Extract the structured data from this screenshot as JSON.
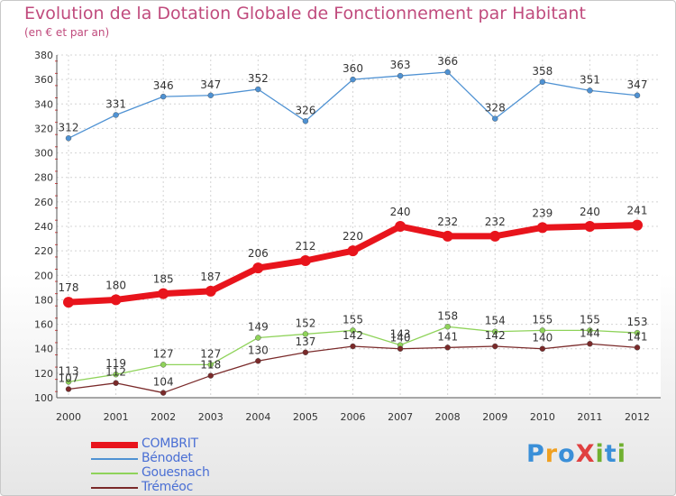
{
  "header": {
    "title": "Evolution de la Dotation Globale de Fonctionnement par Habitant",
    "subtitle": "(en € et par an)"
  },
  "logo": {
    "text": "ProXiti",
    "letters": [
      "P",
      "r",
      "o",
      "X",
      "i",
      "t",
      "i"
    ],
    "colors": [
      "#3a8fd8",
      "#f0a020",
      "#3a8fd8",
      "#e04040",
      "#70b030",
      "#3a8fd8",
      "#70b030"
    ]
  },
  "chart_data": {
    "type": "line",
    "x": [
      "2000",
      "2001",
      "2002",
      "2003",
      "2004",
      "2005",
      "2006",
      "2007",
      "2008",
      "2009",
      "2010",
      "2011",
      "2012"
    ],
    "ylim": [
      100,
      380
    ],
    "yticks": [
      "100",
      "120",
      "140",
      "160",
      "180",
      "200",
      "220",
      "240",
      "260",
      "280",
      "300",
      "320",
      "340",
      "360",
      "380"
    ],
    "grid": true,
    "legend_position": "bottom-left",
    "series": [
      {
        "name": "COMBRIT",
        "color": "#e8141c",
        "emphasis": true,
        "values": [
          178,
          180,
          185,
          187,
          206,
          212,
          220,
          240,
          232,
          232,
          239,
          240,
          241
        ],
        "labels": [
          "178",
          "180",
          "185",
          "187",
          "206",
          "212",
          "220",
          "240",
          "232",
          "232",
          "239",
          "240",
          "241"
        ]
      },
      {
        "name": "Bénodet",
        "color": "#4f92d3",
        "values": [
          312,
          331,
          346,
          347,
          352,
          326,
          360,
          363,
          366,
          328,
          358,
          351,
          347
        ],
        "labels": [
          "312",
          "331",
          "346",
          "347",
          "352",
          "326",
          "360",
          "363",
          "366",
          "328",
          "358",
          "351",
          "347"
        ]
      },
      {
        "name": "Gouesnach",
        "color": "#8fd35a",
        "values": [
          113,
          119,
          127,
          127,
          149,
          152,
          155,
          143,
          158,
          154,
          155,
          155,
          153
        ],
        "labels": [
          "113",
          "119",
          "127",
          "127",
          "149",
          "152",
          "155",
          "143",
          "158",
          "154",
          "155",
          "155",
          "153"
        ]
      },
      {
        "name": "Tréméoc",
        "color": "#7a2a2a",
        "values": [
          107,
          112,
          104,
          118,
          130,
          137,
          142,
          140,
          141,
          142,
          140,
          144,
          141
        ],
        "labels": [
          "107",
          "112",
          "104",
          "118",
          "130",
          "137",
          "142",
          "140",
          "141",
          "142",
          "140",
          "144",
          "141"
        ]
      }
    ]
  }
}
